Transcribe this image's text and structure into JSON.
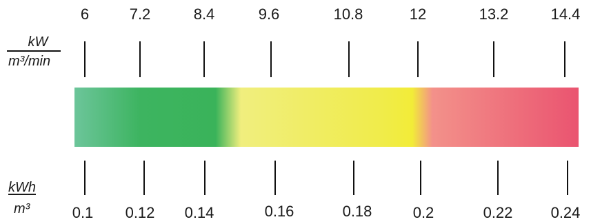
{
  "top_scale": {
    "unit_numerator": "kW",
    "unit_denominator": "m³/min",
    "ticks": [
      "6",
      "7.2",
      "8.4",
      "9.6",
      "10.8",
      "12",
      "13.2",
      "14.4"
    ]
  },
  "bottom_scale": {
    "unit_numerator": "kWh",
    "unit_denominator": "m³",
    "ticks": [
      "0.1",
      "0.12",
      "0.14",
      "0.16",
      "0.18",
      "0.2",
      "0.22",
      "0.24"
    ]
  },
  "color_bar": {
    "stops": [
      {
        "color": "#6cc59a",
        "at": 0.0
      },
      {
        "color": "#3db460",
        "at": 0.13
      },
      {
        "color": "#3ab35a",
        "at": 0.28
      },
      {
        "color": "#f0ee7e",
        "at": 0.33
      },
      {
        "color": "#f0ec4a",
        "at": 0.61
      },
      {
        "color": "#f2ec38",
        "at": 0.67
      },
      {
        "color": "#f3918a",
        "at": 0.71
      },
      {
        "color": "#ea5470",
        "at": 1.0
      }
    ]
  }
}
